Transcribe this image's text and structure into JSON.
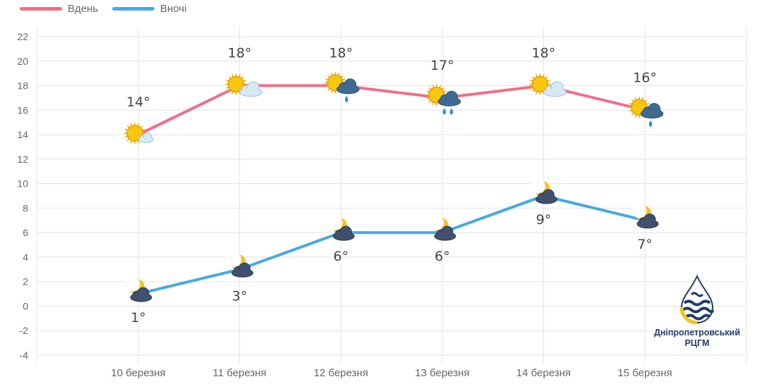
{
  "legend": {
    "day_label": "Вдень",
    "night_label": "Вночі"
  },
  "colors": {
    "day": "#f06e86",
    "night": "#45a9e6",
    "grid": "#e3e3e3",
    "axis_text": "#666666",
    "value_text": "#444444"
  },
  "chart_data": {
    "type": "line",
    "categories": [
      "10 березня",
      "11 березня",
      "12 березня",
      "13 березня",
      "14 березня",
      "15 березня"
    ],
    "series": [
      {
        "name": "Вдень",
        "values": [
          14,
          18,
          18,
          17,
          18,
          16
        ],
        "labels": [
          "14°",
          "18°",
          "18°",
          "17°",
          "18°",
          "16°"
        ],
        "icons": [
          "sun-cloud-icon",
          "sun-cloud-icon",
          "sun-rain-cloud-icon",
          "sun-rain-cloud-icon",
          "sun-cloud-icon",
          "sun-rain-cloud-icon"
        ]
      },
      {
        "name": "Вночі",
        "values": [
          1,
          3,
          6,
          6,
          9,
          7
        ],
        "labels": [
          "1°",
          "3°",
          "6°",
          "6°",
          "9°",
          "7°"
        ],
        "icons": [
          "moon-cloud-icon",
          "moon-cloud-icon",
          "moon-cloud-icon",
          "moon-cloud-icon",
          "moon-cloud-icon",
          "moon-cloud-icon"
        ]
      }
    ],
    "y_ticks": [
      "22",
      "20",
      "18",
      "16",
      "14",
      "12",
      "10",
      "8",
      "6",
      "4",
      "2",
      "0",
      "-2",
      "-4"
    ],
    "ylim": [
      -4,
      22
    ],
    "grid": true,
    "legend_position": "top-left"
  },
  "logo": {
    "line1": "Дніпропетровський",
    "line2": "РЦГМ",
    "icon": "drop-logo-icon"
  }
}
